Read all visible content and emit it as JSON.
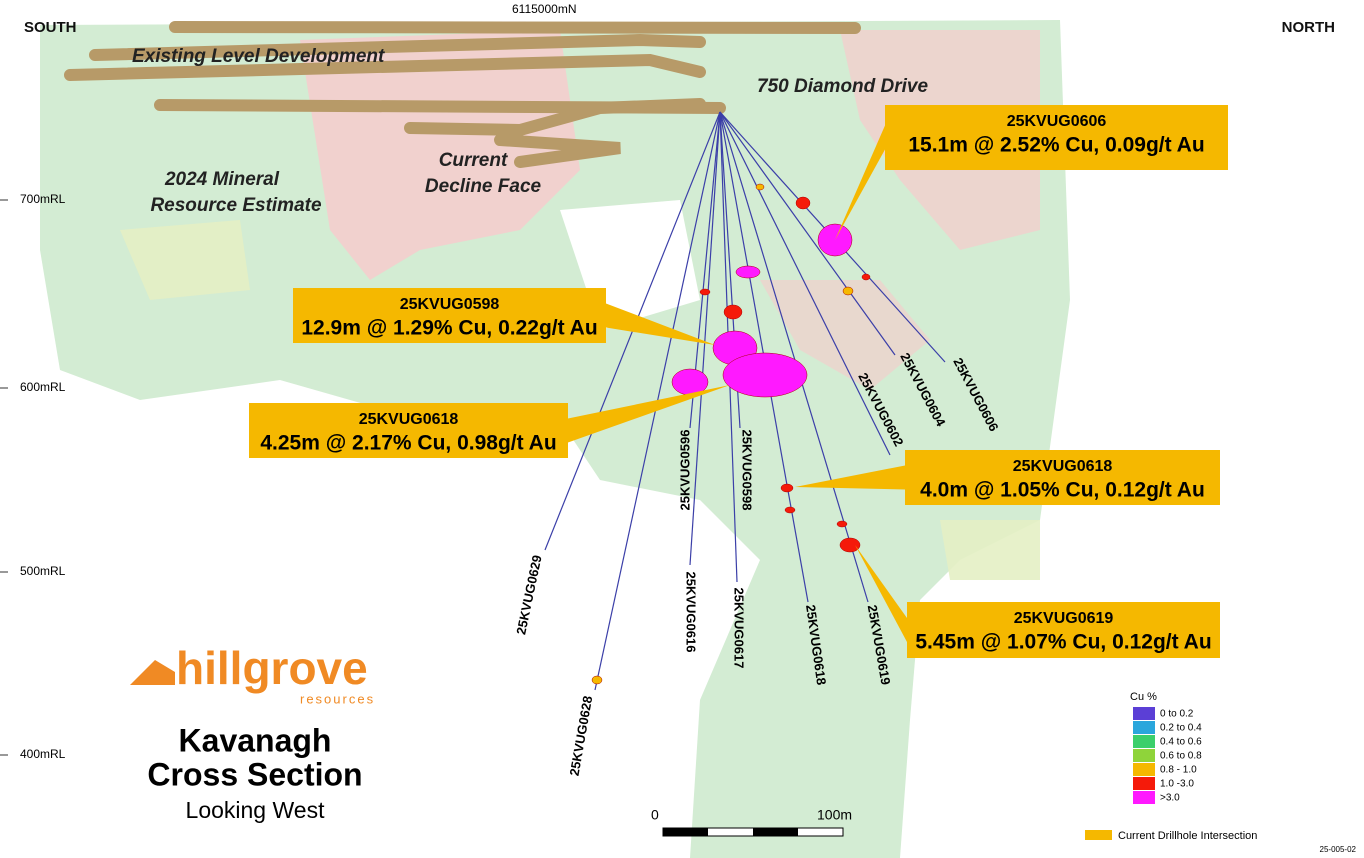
{
  "header": {
    "left": "SOUTH",
    "right": "NORTH",
    "northing": "6115000mN"
  },
  "annotations": {
    "existing": "Existing Level Development",
    "drive": "750 Diamond Drive",
    "decline": [
      "Current",
      "Decline Face"
    ],
    "resource": [
      "2024 Mineral",
      "Resource Estimate"
    ]
  },
  "rl_labels": [
    "700mRL",
    "600mRL",
    "500mRL",
    "400mRL"
  ],
  "callouts": [
    {
      "hole": "25KVUG0606",
      "text": "15.1m @ 2.52% Cu, 0.09g/t Au"
    },
    {
      "hole": "25KVUG0598",
      "text": "12.9m @ 1.29% Cu, 0.22g/t Au"
    },
    {
      "hole": "25KVUG0618",
      "text": "4.25m @ 2.17% Cu, 0.98g/t Au"
    },
    {
      "hole": "25KVUG0618",
      "text": "4.0m @ 1.05% Cu, 0.12g/t Au"
    },
    {
      "hole": "25KVUG0619",
      "text": "5.45m @ 1.07% Cu, 0.12g/t Au"
    }
  ],
  "drillholes": [
    "25KVUG0606",
    "25KVUG0604",
    "25KVUG0602",
    "25KVUG0596",
    "25KVUG0598",
    "25KVUG0629",
    "25KVUG0616",
    "25KVUG0617",
    "25KVUG0618",
    "25KVUG0619",
    "25KVUG0628"
  ],
  "logo": {
    "name": "hillgrove",
    "sub": "resources"
  },
  "title": {
    "lines": [
      "Kavanagh",
      "Cross Section"
    ],
    "subtitle": "Looking West"
  },
  "scale": {
    "start": "0",
    "end": "100m"
  },
  "legend": {
    "title": "Cu %",
    "items": [
      {
        "label": "0 to 0.2",
        "color": "#5b3fd6"
      },
      {
        "label": "0.2 to 0.4",
        "color": "#2aa6dc"
      },
      {
        "label": "0.4 to 0.6",
        "color": "#3bcf6b"
      },
      {
        "label": "0.6 to 0.8",
        "color": "#8fd43a"
      },
      {
        "label": "0.8 - 1.0",
        "color": "#f5b800"
      },
      {
        "label": "1.0  -3.0",
        "color": "#f51a0a"
      },
      {
        "label": ">3.0",
        "color": "#ff19ff"
      }
    ],
    "intersection": "Current Drillhole Intersection"
  },
  "figure_id": "25-005-02"
}
